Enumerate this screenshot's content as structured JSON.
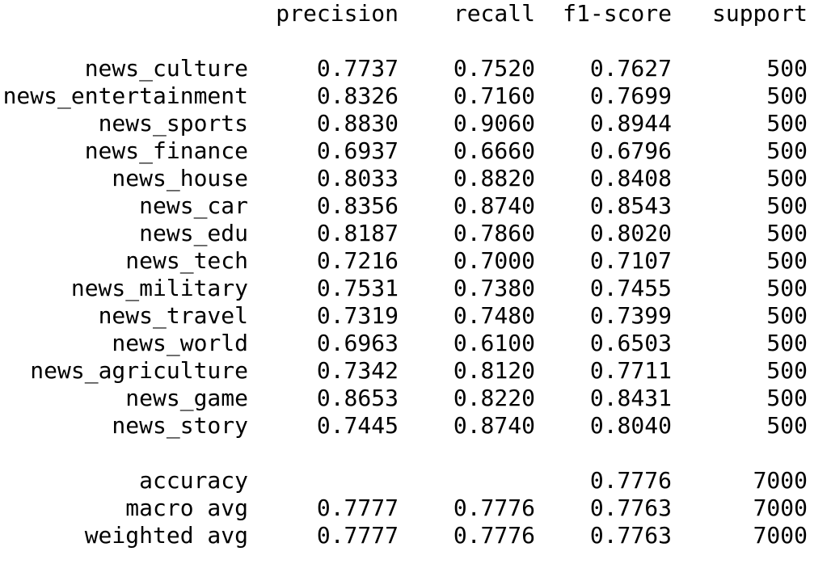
{
  "headers": {
    "precision": "precision",
    "recall": "recall",
    "f1": "f1-score",
    "support": "support"
  },
  "classes": [
    {
      "label": "news_culture",
      "precision": "0.7737",
      "recall": "0.7520",
      "f1": "0.7627",
      "support": "500"
    },
    {
      "label": "news_entertainment",
      "precision": "0.8326",
      "recall": "0.7160",
      "f1": "0.7699",
      "support": "500"
    },
    {
      "label": "news_sports",
      "precision": "0.8830",
      "recall": "0.9060",
      "f1": "0.8944",
      "support": "500"
    },
    {
      "label": "news_finance",
      "precision": "0.6937",
      "recall": "0.6660",
      "f1": "0.6796",
      "support": "500"
    },
    {
      "label": "news_house",
      "precision": "0.8033",
      "recall": "0.8820",
      "f1": "0.8408",
      "support": "500"
    },
    {
      "label": "news_car",
      "precision": "0.8356",
      "recall": "0.8740",
      "f1": "0.8543",
      "support": "500"
    },
    {
      "label": "news_edu",
      "precision": "0.8187",
      "recall": "0.7860",
      "f1": "0.8020",
      "support": "500"
    },
    {
      "label": "news_tech",
      "precision": "0.7216",
      "recall": "0.7000",
      "f1": "0.7107",
      "support": "500"
    },
    {
      "label": "news_military",
      "precision": "0.7531",
      "recall": "0.7380",
      "f1": "0.7455",
      "support": "500"
    },
    {
      "label": "news_travel",
      "precision": "0.7319",
      "recall": "0.7480",
      "f1": "0.7399",
      "support": "500"
    },
    {
      "label": "news_world",
      "precision": "0.6963",
      "recall": "0.6100",
      "f1": "0.6503",
      "support": "500"
    },
    {
      "label": "news_agriculture",
      "precision": "0.7342",
      "recall": "0.8120",
      "f1": "0.7711",
      "support": "500"
    },
    {
      "label": "news_game",
      "precision": "0.8653",
      "recall": "0.8220",
      "f1": "0.8431",
      "support": "500"
    },
    {
      "label": "news_story",
      "precision": "0.7445",
      "recall": "0.8740",
      "f1": "0.8040",
      "support": "500"
    }
  ],
  "summary": [
    {
      "label": "accuracy",
      "precision": "",
      "recall": "",
      "f1": "0.7776",
      "support": "7000"
    },
    {
      "label": "macro avg",
      "precision": "0.7777",
      "recall": "0.7776",
      "f1": "0.7763",
      "support": "7000"
    },
    {
      "label": "weighted avg",
      "precision": "0.7777",
      "recall": "0.7776",
      "f1": "0.7763",
      "support": "7000"
    }
  ]
}
